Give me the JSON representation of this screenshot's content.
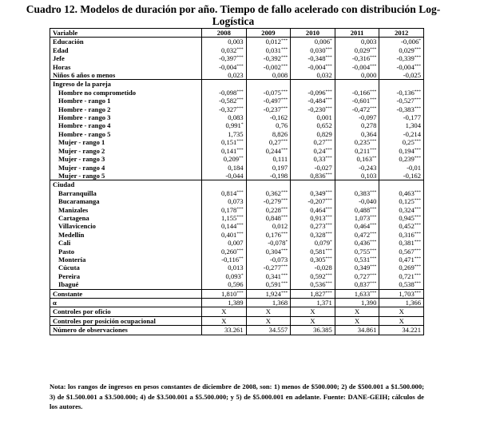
{
  "title": "Cuadro 12. Modelos de duración por año. Tiempo de fallo acelerado con distribución Log-Logística",
  "table": {
    "header": [
      "Variable",
      "2008",
      "2009",
      "2010",
      "2011",
      "2012"
    ],
    "blocks": [
      [
        {
          "label": "Educación",
          "cells": [
            "0,003",
            "0,012***",
            "0,006*",
            "0,003",
            "-0,006*"
          ]
        },
        {
          "label": "Edad",
          "cells": [
            "0,032***",
            "0,031***",
            "0,030***",
            "0,029***",
            "0,029***"
          ]
        },
        {
          "label": "Jefe",
          "cells": [
            "-0,397***",
            "-0,392***",
            "-0,348***",
            "-0,316***",
            "-0,339***"
          ]
        },
        {
          "label": "Horas",
          "cells": [
            "-0,004***",
            "-0,002***",
            "-0,004***",
            "-0,004***",
            "-0,004***"
          ]
        },
        {
          "label": "Niños 6 años o menos",
          "cells": [
            "0,023",
            "0,008",
            "0,032",
            "0,000",
            "-0,025"
          ]
        }
      ],
      [
        {
          "label": "Ingreso de la pareja"
        },
        {
          "label": "Hombre no comprometido",
          "cells": [
            "-0,098***",
            "-0,075***",
            "-0,096***",
            "-0,166***",
            "-0,136***"
          ]
        },
        {
          "label": "Hombre - rango 1",
          "cells": [
            "-0,582***",
            "-0,497***",
            "-0,484***",
            "-0,601***",
            "-0,527***"
          ]
        },
        {
          "label": "Hombre - rango 2",
          "cells": [
            "-0,327***",
            "-0,237***",
            "-0,230***",
            "-0,472***",
            "-0,383***"
          ]
        },
        {
          "label": "Hombre - rango 3",
          "cells": [
            "0,083",
            "-0,162",
            "0,001",
            "-0,097",
            "-0,177"
          ]
        },
        {
          "label": "Hombre - rango 4",
          "cells": [
            "0,991*",
            "0,76",
            "0,652",
            "0,278",
            "1,304"
          ]
        },
        {
          "label": "Hombre - rango 5",
          "cells": [
            "1,735",
            "8,826",
            "0,829",
            "0,364",
            "-0,214"
          ]
        },
        {
          "label": "Mujer - rango 1",
          "cells": [
            "0,151***",
            "0,27***",
            "0,27***",
            "0,235***",
            "0,25***"
          ]
        },
        {
          "label": "Mujer - rango 2",
          "cells": [
            "0,141***",
            "0,244***",
            "0,24***",
            "0,211***",
            "0,194***"
          ]
        },
        {
          "label": "Mujer - rango 3",
          "cells": [
            "0,209**",
            "0,111",
            "0,33***",
            "0,163**",
            "0,239***"
          ]
        },
        {
          "label": "Mujer - rango 4",
          "cells": [
            "0,184",
            "0,197",
            "-0,027",
            "-0,243",
            "-0,01"
          ]
        },
        {
          "label": "Mujer - rango 5",
          "cells": [
            "-0,044",
            "-0,198",
            "0,836***",
            "0,103",
            "-0,162"
          ]
        }
      ],
      [
        {
          "label": "Ciudad"
        },
        {
          "label": "Barranquilla",
          "cells": [
            "0,814***",
            "0,362***",
            "0,349***",
            "0,383***",
            "0,463***"
          ]
        },
        {
          "label": "Bucaramanga",
          "cells": [
            "0,073",
            "-0,279***",
            "-0,207***",
            "-0,040",
            "0,125***"
          ]
        },
        {
          "label": "Manizales",
          "cells": [
            "0,178***",
            "0,228***",
            "0,464***",
            "0,488***",
            "0,324***"
          ]
        },
        {
          "label": "Cartagena",
          "cells": [
            "1,155***",
            "0,848***",
            "0,913***",
            "1,073***",
            "0,945***"
          ]
        },
        {
          "label": "Villavicencio",
          "cells": [
            "0,144***",
            "0,012",
            "0,273***",
            "0,464***",
            "0,452***"
          ]
        },
        {
          "label": "Medellín",
          "cells": [
            "0,401***",
            "0,176***",
            "0,328***",
            "0,472***",
            "0,316***"
          ]
        },
        {
          "label": "Cali",
          "cells": [
            "0,007",
            "-0,078*",
            "0,079*",
            "0,436***",
            "0,381***"
          ]
        },
        {
          "label": "Pasto",
          "cells": [
            "0,260***",
            "0,304***",
            "0,581***",
            "0,755***",
            "0,567***"
          ]
        },
        {
          "label": "Montería",
          "cells": [
            "-0,116**",
            "-0,073",
            "0,305***",
            "0,531***",
            "0,471***"
          ]
        },
        {
          "label": "Cúcuta",
          "cells": [
            "0,013",
            "-0,277***",
            "-0,028",
            "0,349***",
            "0,269***"
          ]
        },
        {
          "label": "Pereira",
          "cells": [
            "0,093*",
            "0,341***",
            "0,592***",
            "0,727***",
            "0,721***"
          ]
        },
        {
          "label": "Ibagué",
          "cells": [
            "0,596",
            "0,591***",
            "0,536***",
            "0,837***",
            "0,538***"
          ]
        }
      ],
      [
        {
          "label": "Constante",
          "cells": [
            "1,810***",
            "1,924***",
            "1,827***",
            "1,633***",
            "1,703***"
          ]
        }
      ],
      [
        {
          "label": "α",
          "cells": [
            "1,389",
            "1,368",
            "1,371",
            "1,390",
            "1,366"
          ]
        }
      ],
      [
        {
          "label": "Controles por oficio",
          "cells": [
            "X",
            "X",
            "X",
            "X",
            "X"
          ]
        }
      ],
      [
        {
          "label": "Controles por posición ocupacional",
          "cells": [
            "X",
            "X",
            "X",
            "X",
            "X"
          ]
        }
      ],
      [
        {
          "label": "Número de observaciones",
          "cells": [
            "33.261",
            "34.557",
            "36.385",
            "34.861",
            "34.221"
          ]
        }
      ]
    ]
  },
  "note": "Nota: los rangos de ingresos en pesos constantes de diciembre de 2008, son: 1) menos de $500.000; 2) de $500.001 a $1.500.000; 3) de $1.500.001 a $3.500.000; 4) de $3.500.001 a $5.500.000; y 5) de $5.000.001 en adelante. Fuente: DANE-GEIH; cálculos de los autores."
}
